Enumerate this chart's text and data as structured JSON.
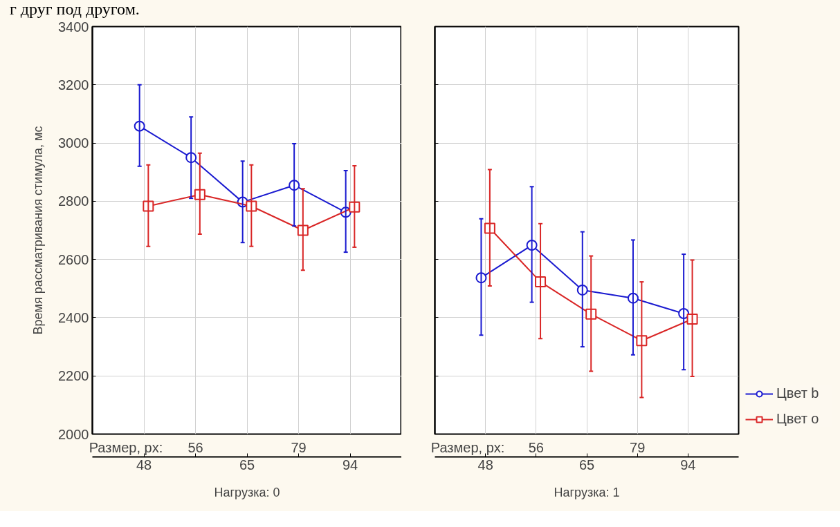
{
  "chart_data": [
    {
      "type": "line",
      "annotations": [
        "г друг под другом.",
        "Размер, px:"
      ],
      "xlabel": "Нагрузка: 0",
      "ylabel": "Время рассматривания стимула, мс",
      "categories": [
        "48",
        "56",
        "65",
        "79",
        "94"
      ],
      "ylim": [
        2000,
        3400
      ],
      "yticks": [
        2000,
        2200,
        2400,
        2600,
        2800,
        3000,
        3200,
        3400
      ],
      "grid": true,
      "series": [
        {
          "color": "#1a1ad0",
          "marker": "circle",
          "values": [
            3058,
            2950,
            2797,
            2855,
            2762
          ],
          "errors": [
            [
              2920,
              3200
            ],
            [
              2810,
              3090
            ],
            [
              2658,
              2938
            ],
            [
              2715,
              2998
            ],
            [
              2625,
              2905
            ]
          ]
        },
        {
          "color": "#d92626",
          "marker": "square",
          "values": [
            2783,
            2823,
            2783,
            2700,
            2780
          ],
          "errors": [
            [
              2645,
              2925
            ],
            [
              2687,
              2965
            ],
            [
              2645,
              2925
            ],
            [
              2563,
              2843
            ],
            [
              2642,
              2922
            ]
          ]
        }
      ]
    },
    {
      "type": "line",
      "annotations": [
        "Размер, px:"
      ],
      "xlabel": "Нагрузка: 1",
      "tick_labels": "x",
      "categories": [
        "48",
        "56",
        "65",
        "79",
        "94"
      ],
      "ylim": [
        2000,
        3400
      ],
      "yticks": [
        2000,
        2200,
        2400,
        2600,
        2800,
        3000,
        3200,
        3400
      ],
      "grid": true,
      "legend": "bottom right",
      "series": [
        {
          "name": "Цвет b",
          "color": "#1a1ad0",
          "marker": "circle",
          "values": [
            2537,
            2649,
            2495,
            2467,
            2414
          ],
          "errors": [
            [
              2340,
              2740
            ],
            [
              2453,
              2850
            ],
            [
              2300,
              2695
            ],
            [
              2272,
              2667
            ],
            [
              2221,
              2618
            ]
          ]
        },
        {
          "name": "Цвет o",
          "color": "#d92626",
          "marker": "square",
          "values": [
            2707,
            2523,
            2412,
            2321,
            2395
          ],
          "errors": [
            [
              2509,
              2909
            ],
            [
              2328,
              2723
            ],
            [
              2216,
              2612
            ],
            [
              2126,
              2523
            ],
            [
              2198,
              2598
            ]
          ]
        }
      ]
    }
  ]
}
